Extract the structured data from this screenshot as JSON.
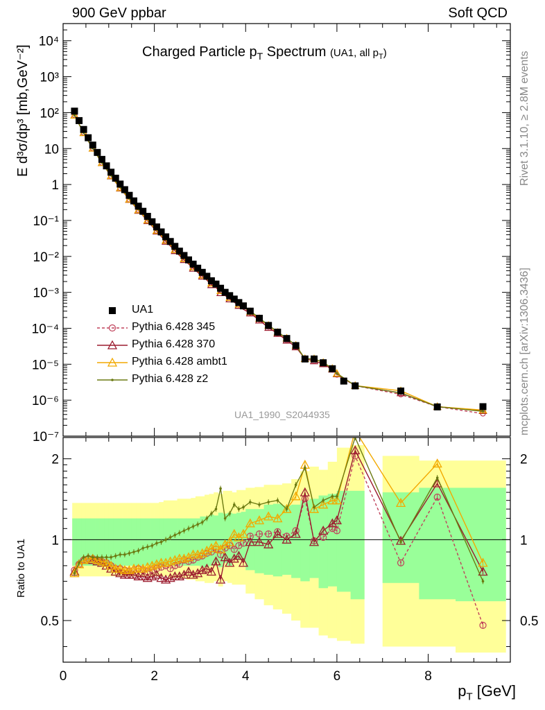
{
  "header": {
    "left": "900 GeV ppbar",
    "right": "Soft QCD"
  },
  "title": {
    "main": "Charged Particle p",
    "main_sub": "T",
    "main_tail": " Spectrum",
    "small": "(UA1, all p",
    "small_sub": "T",
    "small_tail": ")"
  },
  "watermark": "UA1_1990_S2044935",
  "side_labels": {
    "rivet": "Rivet 3.1.10, ≥ 2.8M events",
    "mcplots": "mcplots.cern.ch [arXiv:1306.3436]"
  },
  "legend": [
    {
      "label": "UA1",
      "color": "#000000",
      "marker": "square",
      "dashed": false
    },
    {
      "label": "Pythia 6.428 345",
      "color": "#c0405a",
      "marker": "circle",
      "dashed": true
    },
    {
      "label": "Pythia 6.428 370",
      "color": "#9b1b2e",
      "marker": "triangle",
      "dashed": false
    },
    {
      "label": "Pythia 6.428 ambt1",
      "color": "#f2a900",
      "marker": "triangle",
      "dashed": false
    },
    {
      "label": "Pythia 6.428 z2",
      "color": "#6b7a12",
      "marker": "dot",
      "dashed": false
    }
  ],
  "axes": {
    "top_ylabel": "E d³σ/dp³ [mb,GeV⁻²]",
    "bottom_ylabel": "Ratio to UA1",
    "xlabel": "p",
    "xlabel_sub": "T",
    "xlabel_unit": " [GeV]",
    "top_yticks": [
      "10⁻⁷",
      "10⁻⁶",
      "10⁻⁵",
      "10⁻⁴",
      "10⁻³",
      "10⁻²",
      "10⁻¹",
      "1",
      "10",
      "10²",
      "10³",
      "10⁴"
    ],
    "bottom_yticks": [
      "0.5",
      "1",
      "2"
    ],
    "xticks": [
      "0",
      "2",
      "4",
      "6",
      "8"
    ]
  },
  "chart_data": {
    "type": "scatter",
    "title": "Charged Particle pT Spectrum (UA1, all pT)",
    "xlabel": "pT [GeV]",
    "ylabel": "E d3σ/dp3 [mb,GeV-2]",
    "ratio_ylabel": "Ratio to UA1",
    "xlim": [
      0,
      9.8
    ],
    "ylim": [
      1e-07,
      30000
    ],
    "ratio_ylim": [
      0.35,
      2.4
    ],
    "yscale": "log",
    "ratio_yscale": "log",
    "legend_position": "bottom-left",
    "data": {
      "name": "UA1",
      "x": [
        0.25,
        0.35,
        0.45,
        0.55,
        0.65,
        0.75,
        0.85,
        0.95,
        1.05,
        1.15,
        1.25,
        1.35,
        1.45,
        1.55,
        1.65,
        1.75,
        1.85,
        1.95,
        2.05,
        2.15,
        2.25,
        2.35,
        2.45,
        2.55,
        2.65,
        2.75,
        2.85,
        2.95,
        3.05,
        3.15,
        3.25,
        3.35,
        3.45,
        3.55,
        3.65,
        3.75,
        3.85,
        3.95,
        4.1,
        4.3,
        4.5,
        4.7,
        4.9,
        5.1,
        5.3,
        5.5,
        5.7,
        5.9,
        6.15,
        6.4,
        7.4,
        8.2,
        9.2
      ],
      "y": [
        110,
        60,
        34,
        20,
        12.5,
        7.8,
        5.0,
        3.3,
        2.2,
        1.5,
        1.03,
        0.72,
        0.5,
        0.35,
        0.25,
        0.18,
        0.13,
        0.092,
        0.066,
        0.048,
        0.035,
        0.026,
        0.019,
        0.014,
        0.0106,
        0.008,
        0.0061,
        0.0047,
        0.0036,
        0.0028,
        0.0021,
        0.0017,
        0.0013,
        0.001,
        0.00081,
        0.00065,
        0.00052,
        0.00042,
        0.0003,
        0.00019,
        0.00012,
        7.8e-05,
        5.2e-05,
        3.3e-05,
        1.4e-05,
        1.4e-05,
        1.1e-05,
        7.5e-06,
        3.4e-06,
        2.5e-06,
        1.8e-06,
        6.5e-07,
        6.6e-07
      ]
    },
    "band_edges": [
      0.2,
      0.3,
      0.4,
      0.5,
      0.6,
      0.7,
      0.8,
      0.9,
      1.0,
      1.1,
      1.2,
      1.3,
      1.4,
      1.5,
      1.6,
      1.7,
      1.8,
      1.9,
      2.0,
      2.1,
      2.2,
      2.3,
      2.4,
      2.5,
      2.6,
      2.7,
      2.8,
      2.9,
      3.0,
      3.1,
      3.2,
      3.3,
      3.4,
      3.5,
      3.6,
      3.7,
      3.8,
      3.9,
      4.0,
      4.2,
      4.4,
      4.6,
      4.8,
      5.0,
      5.2,
      5.4,
      5.6,
      5.8,
      6.0,
      6.3,
      6.6,
      7.0,
      7.8,
      8.6,
      9.7
    ],
    "stat_band": {
      "lo": [
        0.8,
        0.8,
        0.8,
        0.8,
        0.8,
        0.8,
        0.8,
        0.8,
        0.8,
        0.8,
        0.8,
        0.8,
        0.8,
        0.8,
        0.8,
        0.8,
        0.8,
        0.8,
        0.8,
        0.8,
        0.8,
        0.8,
        0.8,
        0.8,
        0.8,
        0.8,
        0.8,
        0.8,
        0.79,
        0.79,
        0.8,
        0.82,
        0.79,
        0.82,
        0.8,
        0.85,
        0.84,
        0.83,
        0.77,
        0.75,
        0.74,
        0.73,
        0.74,
        0.72,
        0.7,
        0.72,
        0.66,
        0.67,
        0.64,
        0.6,
        null,
        0.69,
        0.6,
        0.59
      ],
      "hi": [
        1.2,
        1.2,
        1.2,
        1.2,
        1.2,
        1.2,
        1.2,
        1.2,
        1.2,
        1.2,
        1.2,
        1.2,
        1.2,
        1.2,
        1.2,
        1.2,
        1.2,
        1.2,
        1.2,
        1.2,
        1.2,
        1.2,
        1.2,
        1.2,
        1.2,
        1.2,
        1.2,
        1.2,
        1.22,
        1.22,
        1.24,
        1.23,
        1.26,
        1.25,
        1.26,
        1.25,
        1.26,
        1.27,
        1.3,
        1.3,
        1.35,
        1.36,
        1.34,
        1.35,
        1.4,
        1.42,
        1.46,
        1.48,
        1.52,
        1.52,
        null,
        1.5,
        1.56,
        1.56
      ]
    },
    "total_band": {
      "lo": [
        0.73,
        0.73,
        0.73,
        0.73,
        0.73,
        0.73,
        0.73,
        0.73,
        0.73,
        0.73,
        0.73,
        0.73,
        0.73,
        0.73,
        0.73,
        0.73,
        0.73,
        0.73,
        0.73,
        0.73,
        0.73,
        0.72,
        0.72,
        0.72,
        0.72,
        0.71,
        0.71,
        0.7,
        0.7,
        0.69,
        0.69,
        0.7,
        0.67,
        0.7,
        0.69,
        0.68,
        0.68,
        0.68,
        0.63,
        0.6,
        0.57,
        0.55,
        0.53,
        0.5,
        0.47,
        0.47,
        0.44,
        0.43,
        0.42,
        0.41,
        null,
        0.4,
        0.4,
        0.38
      ],
      "hi": [
        1.37,
        1.37,
        1.37,
        1.37,
        1.37,
        1.37,
        1.37,
        1.37,
        1.37,
        1.37,
        1.37,
        1.37,
        1.37,
        1.37,
        1.37,
        1.37,
        1.37,
        1.37,
        1.37,
        1.38,
        1.4,
        1.4,
        1.4,
        1.42,
        1.42,
        1.42,
        1.43,
        1.45,
        1.45,
        1.47,
        1.48,
        1.5,
        1.48,
        1.52,
        1.52,
        1.5,
        1.53,
        1.53,
        1.56,
        1.57,
        1.6,
        1.6,
        1.62,
        1.68,
        1.8,
        1.87,
        1.82,
        1.95,
        2.2,
        2.25,
        null,
        2.05,
        1.97,
        1.97
      ]
    },
    "series": [
      {
        "name": "Pythia 6.428 345",
        "x": [
          0.25,
          0.35,
          0.45,
          0.55,
          0.65,
          0.75,
          0.85,
          0.95,
          1.05,
          1.15,
          1.25,
          1.35,
          1.45,
          1.55,
          1.65,
          1.75,
          1.85,
          1.95,
          2.05,
          2.15,
          2.25,
          2.35,
          2.45,
          2.55,
          2.65,
          2.75,
          2.85,
          2.95,
          3.05,
          3.15,
          3.25,
          3.35,
          3.45,
          3.55,
          3.65,
          3.75,
          3.85,
          3.95,
          4.1,
          4.3,
          4.5,
          4.7,
          4.9,
          5.1,
          5.3,
          5.5,
          5.7,
          5.9,
          6.0,
          6.4,
          7.4,
          8.2,
          9.2
        ],
        "ratio": [
          0.77,
          0.81,
          0.84,
          0.85,
          0.85,
          0.84,
          0.83,
          0.82,
          0.8,
          0.78,
          0.78,
          0.77,
          0.76,
          0.77,
          0.78,
          0.77,
          0.76,
          0.77,
          0.78,
          0.79,
          0.8,
          0.78,
          0.8,
          0.81,
          0.84,
          0.83,
          0.84,
          0.86,
          0.87,
          0.89,
          0.9,
          0.92,
          0.88,
          0.93,
          0.95,
          0.92,
          0.95,
          0.97,
          1.03,
          1.05,
          1.05,
          1.07,
          1.03,
          1.08,
          1.42,
          0.99,
          1.02,
          1.1,
          1.08,
          2.05,
          0.82,
          1.44,
          0.48
        ]
      },
      {
        "name": "Pythia 6.428 370",
        "x": [
          0.25,
          0.35,
          0.45,
          0.55,
          0.65,
          0.75,
          0.85,
          0.95,
          1.05,
          1.15,
          1.25,
          1.35,
          1.45,
          1.55,
          1.65,
          1.75,
          1.85,
          1.95,
          2.05,
          2.15,
          2.25,
          2.35,
          2.45,
          2.55,
          2.65,
          2.75,
          2.85,
          2.95,
          3.05,
          3.15,
          3.25,
          3.35,
          3.45,
          3.55,
          3.65,
          3.75,
          3.85,
          3.95,
          4.1,
          4.3,
          4.5,
          4.7,
          4.9,
          5.1,
          5.3,
          5.5,
          5.7,
          5.9,
          6.0,
          6.4,
          7.4,
          8.2,
          9.2
        ],
        "ratio": [
          0.76,
          0.81,
          0.84,
          0.85,
          0.84,
          0.83,
          0.82,
          0.8,
          0.78,
          0.76,
          0.75,
          0.74,
          0.74,
          0.74,
          0.73,
          0.73,
          0.72,
          0.73,
          0.74,
          0.72,
          0.71,
          0.72,
          0.73,
          0.73,
          0.74,
          0.76,
          0.74,
          0.75,
          0.77,
          0.78,
          0.76,
          0.83,
          0.71,
          0.86,
          0.82,
          0.85,
          0.87,
          0.82,
          0.98,
          0.98,
          0.96,
          1.05,
          1.0,
          1.05,
          1.5,
          0.98,
          1.08,
          1.15,
          1.18,
          2.15,
          0.99,
          1.62,
          0.76
        ]
      },
      {
        "name": "Pythia 6.428 ambt1",
        "x": [
          0.25,
          0.35,
          0.45,
          0.55,
          0.65,
          0.75,
          0.85,
          0.95,
          1.05,
          1.15,
          1.25,
          1.35,
          1.45,
          1.55,
          1.65,
          1.75,
          1.85,
          1.95,
          2.05,
          2.15,
          2.25,
          2.35,
          2.45,
          2.55,
          2.65,
          2.75,
          2.85,
          2.95,
          3.05,
          3.15,
          3.25,
          3.35,
          3.45,
          3.55,
          3.65,
          3.75,
          3.85,
          3.95,
          4.1,
          4.3,
          4.5,
          4.7,
          4.9,
          5.1,
          5.3,
          5.5,
          5.7,
          5.9,
          6.0,
          6.4,
          7.4,
          8.2,
          9.2
        ],
        "ratio": [
          0.75,
          0.81,
          0.84,
          0.85,
          0.85,
          0.84,
          0.83,
          0.82,
          0.8,
          0.78,
          0.78,
          0.77,
          0.77,
          0.78,
          0.78,
          0.78,
          0.79,
          0.8,
          0.81,
          0.82,
          0.82,
          0.83,
          0.84,
          0.85,
          0.85,
          0.86,
          0.88,
          0.88,
          0.89,
          0.91,
          0.93,
          0.95,
          0.92,
          0.96,
          0.98,
          1.05,
          1.02,
          1.05,
          1.15,
          1.18,
          1.22,
          1.2,
          1.3,
          1.45,
          1.9,
          1.3,
          1.35,
          1.4,
          1.4,
          2.55,
          1.37,
          1.92,
          0.82
        ]
      },
      {
        "name": "Pythia 6.428 z2",
        "x": [
          0.25,
          0.35,
          0.45,
          0.55,
          0.65,
          0.75,
          0.85,
          0.95,
          1.05,
          1.15,
          1.25,
          1.35,
          1.45,
          1.55,
          1.65,
          1.75,
          1.85,
          1.95,
          2.05,
          2.15,
          2.25,
          2.35,
          2.45,
          2.55,
          2.65,
          2.75,
          2.85,
          2.95,
          3.05,
          3.15,
          3.25,
          3.35,
          3.45,
          3.55,
          3.65,
          3.75,
          3.85,
          3.95,
          4.1,
          4.3,
          4.5,
          4.7,
          4.9,
          5.1,
          5.3,
          5.5,
          5.7,
          5.9,
          6.0,
          6.4,
          7.4,
          8.2,
          9.2
        ],
        "ratio": [
          0.75,
          0.82,
          0.86,
          0.87,
          0.86,
          0.86,
          0.86,
          0.86,
          0.86,
          0.87,
          0.88,
          0.88,
          0.89,
          0.9,
          0.91,
          0.93,
          0.94,
          0.95,
          0.97,
          0.98,
          1.0,
          1.02,
          1.04,
          1.06,
          1.08,
          1.1,
          1.12,
          1.14,
          1.16,
          1.2,
          1.25,
          1.3,
          1.55,
          1.2,
          1.25,
          1.35,
          1.3,
          1.32,
          1.38,
          1.35,
          1.38,
          1.4,
          1.3,
          1.6,
          1.85,
          1.32,
          1.4,
          1.45,
          1.45,
          2.4,
          0.98,
          1.7,
          0.7
        ]
      }
    ]
  }
}
